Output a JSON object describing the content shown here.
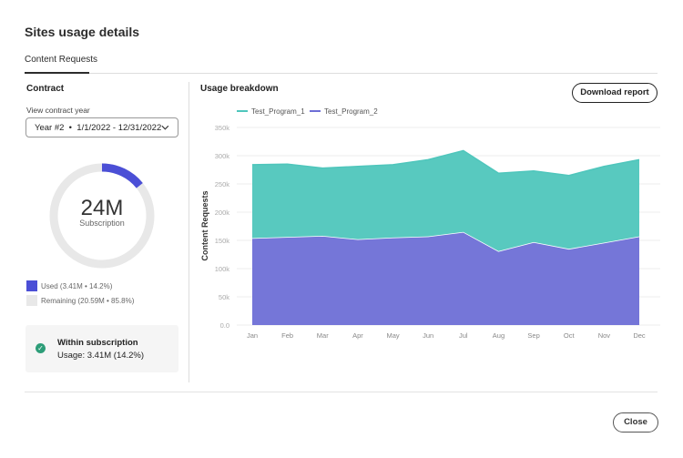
{
  "dialog": {
    "title": "Sites usage details",
    "tabs": [
      {
        "label": "Content Requests",
        "selected": true
      }
    ]
  },
  "contract": {
    "heading": "Contract",
    "year_label": "View contract year",
    "year_value": "Year #2  •  1/1/2022 - 12/31/2022",
    "donut": {
      "total": "24M",
      "caption": "Subscription",
      "used_fraction": 0.142,
      "used_color": "#4b4fd6",
      "remaining_color": "#e8e8e8"
    },
    "legend": [
      {
        "label": "Used (3.41M • 14.2%)"
      },
      {
        "label": "Remaining (20.59M • 85.8%)"
      }
    ],
    "status": {
      "title": "Within subscription",
      "detail": "Usage: 3.41M (14.2%)",
      "icon": "checkmark-circle-icon",
      "color": "#2d9d78"
    }
  },
  "usage": {
    "heading": "Usage breakdown",
    "download_label": "Download report"
  },
  "footer": {
    "close_label": "Close"
  },
  "chart_data": {
    "type": "area",
    "stacked": true,
    "categories": [
      "Jan",
      "Feb",
      "Mar",
      "Apr",
      "May",
      "Jun",
      "Jul",
      "Aug",
      "Sep",
      "Oct",
      "Nov",
      "Dec"
    ],
    "series": [
      {
        "name": "Test_Program_2",
        "color": "#6e6fd6",
        "values": [
          154000,
          156000,
          158000,
          152000,
          155000,
          157000,
          165000,
          131000,
          147000,
          135000,
          146000,
          157000
        ]
      },
      {
        "name": "Test_Program_1",
        "color": "#4fc6bc",
        "values": [
          130000,
          129000,
          120000,
          129000,
          129000,
          136000,
          144000,
          138000,
          126000,
          130000,
          135000,
          136000
        ]
      }
    ],
    "ylabel": "Content Requests",
    "yticks": [
      "0.0",
      "50k",
      "100k",
      "150k",
      "200k",
      "250k",
      "300k",
      "350k"
    ],
    "ylim": [
      0,
      350000
    ],
    "grid": true,
    "legend_position": "top-left"
  }
}
